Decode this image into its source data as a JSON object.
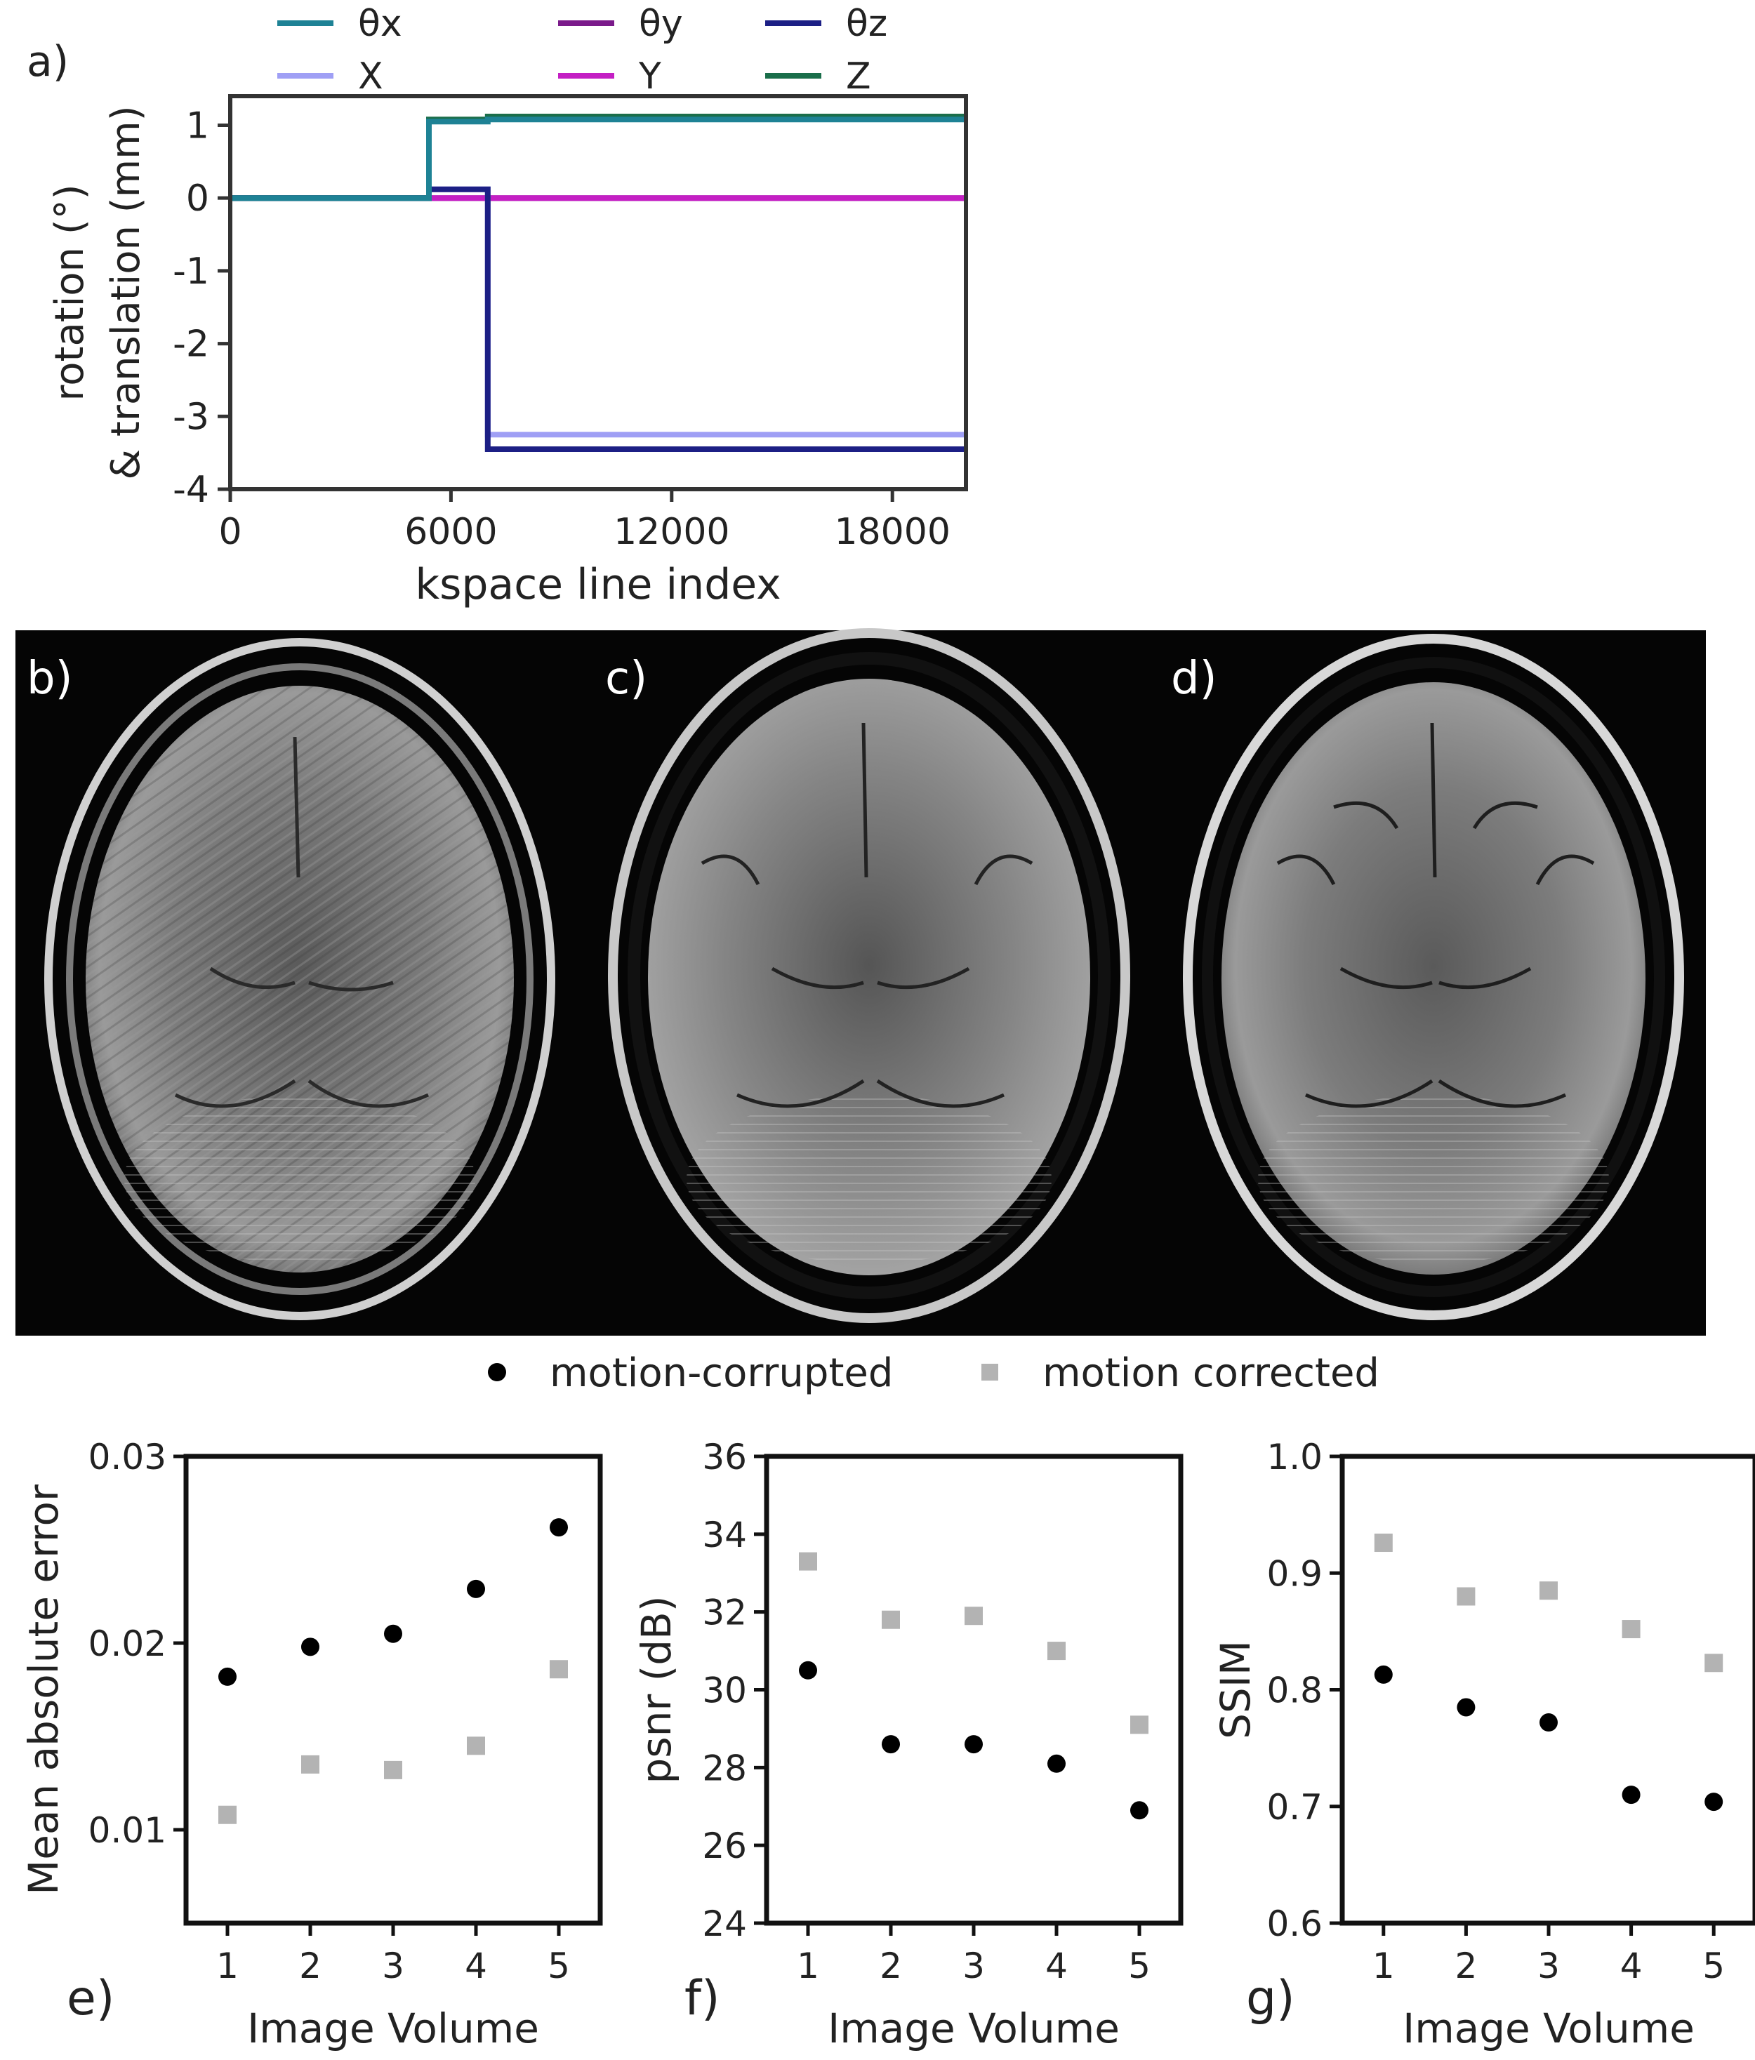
{
  "panel_labels": {
    "a": "a)",
    "b": "b)",
    "c": "c)",
    "d": "d)",
    "e": "e)",
    "f": "f)",
    "g": "g)"
  },
  "colors": {
    "thetax": "#1e8295",
    "thetay": "#7a1a8a",
    "thetaz": "#1c1f85",
    "X": "#9f9ff5",
    "Y": "#c41fc4",
    "Z": "#1a6e4a",
    "corrupted": "#000000",
    "corrected": "#b3b3b3"
  },
  "legend_top": [
    {
      "key": "thetax",
      "label": "θx"
    },
    {
      "key": "thetay",
      "label": "θy"
    },
    {
      "key": "thetaz",
      "label": "θz"
    },
    {
      "key": "X",
      "label": "X"
    },
    {
      "key": "Y",
      "label": "Y"
    },
    {
      "key": "Z",
      "label": "Z"
    }
  ],
  "legend_bottom": [
    {
      "key": "corrupted",
      "label": "motion-corrupted",
      "marker": "circle"
    },
    {
      "key": "corrected",
      "label": "motion corrected",
      "marker": "square"
    }
  ],
  "brain_images": [
    {
      "label": "b)",
      "description": "motion-corrupted axial brain MRI"
    },
    {
      "label": "c)",
      "description": "reference axial brain MRI"
    },
    {
      "label": "d)",
      "description": "motion-corrected axial brain MRI"
    }
  ],
  "chart_data": [
    {
      "id": "motion_trace",
      "type": "line",
      "title": "",
      "xlabel": "kspace line index",
      "ylabel_line1": "rotation (°)",
      "ylabel_line2": "& translation (mm)",
      "xlim": [
        0,
        20000
      ],
      "ylim": [
        -4,
        1.4
      ],
      "xticks": [
        0,
        6000,
        12000,
        18000
      ],
      "xtick_labels": [
        "0",
        "6000",
        "12000",
        "18000"
      ],
      "yticks": [
        1,
        0,
        -1,
        -2,
        -3,
        -4
      ],
      "ytick_labels": [
        "1",
        "0",
        "-1",
        "-2",
        "-3",
        "-4"
      ],
      "series": [
        {
          "name": "θy",
          "key": "thetay",
          "x": [
            0,
            5400,
            5400,
            20000
          ],
          "y": [
            0,
            0,
            0,
            0
          ]
        },
        {
          "name": "Y",
          "key": "Y",
          "x": [
            0,
            5400,
            5400,
            20000
          ],
          "y": [
            0,
            0,
            0,
            0
          ]
        },
        {
          "name": "X",
          "key": "X",
          "x": [
            0,
            5400,
            5400,
            7000,
            7000,
            20000
          ],
          "y": [
            0,
            0,
            0.12,
            0.12,
            -3.25,
            -3.25
          ]
        },
        {
          "name": "θz",
          "key": "thetaz",
          "x": [
            0,
            5400,
            5400,
            7000,
            7000,
            20000
          ],
          "y": [
            0,
            0,
            0.12,
            0.12,
            -3.45,
            -3.45
          ]
        },
        {
          "name": "Z",
          "key": "Z",
          "x": [
            0,
            5400,
            5400,
            7000,
            7000,
            20000
          ],
          "y": [
            0,
            0,
            1.08,
            1.08,
            1.12,
            1.12
          ]
        },
        {
          "name": "θx",
          "key": "thetax",
          "x": [
            0,
            5400,
            5400,
            7000,
            7000,
            20000
          ],
          "y": [
            0,
            0,
            1.05,
            1.05,
            1.08,
            1.08
          ]
        }
      ]
    },
    {
      "id": "mae",
      "type": "scatter",
      "panel": "e)",
      "xlabel": "Image Volume",
      "ylabel": "Mean absolute error",
      "xlim": [
        0.5,
        5.5
      ],
      "ylim": [
        0.005,
        0.03
      ],
      "xticks": [
        1,
        2,
        3,
        4,
        5
      ],
      "yticks": [
        0.03,
        0.02,
        0.01
      ],
      "ytick_labels": [
        "0.03",
        "0.02",
        "0.01"
      ],
      "x": [
        1,
        2,
        3,
        4,
        5
      ],
      "series": [
        {
          "name": "motion-corrupted",
          "key": "corrupted",
          "marker": "circle",
          "values": [
            0.0182,
            0.0198,
            0.0205,
            0.0229,
            0.0262
          ]
        },
        {
          "name": "motion corrected",
          "key": "corrected",
          "marker": "square",
          "values": [
            0.0108,
            0.0135,
            0.0132,
            0.0145,
            0.0186
          ]
        }
      ]
    },
    {
      "id": "psnr",
      "type": "scatter",
      "panel": "f)",
      "xlabel": "Image Volume",
      "ylabel": "psnr (dB)",
      "xlim": [
        0.5,
        5.5
      ],
      "ylim": [
        24,
        36
      ],
      "xticks": [
        1,
        2,
        3,
        4,
        5
      ],
      "yticks": [
        36,
        34,
        32,
        30,
        28,
        26,
        24
      ],
      "ytick_labels": [
        "36",
        "34",
        "32",
        "30",
        "28",
        "26",
        "24"
      ],
      "x": [
        1,
        2,
        3,
        4,
        5
      ],
      "series": [
        {
          "name": "motion-corrupted",
          "key": "corrupted",
          "marker": "circle",
          "values": [
            30.5,
            28.6,
            28.6,
            28.1,
            26.9
          ]
        },
        {
          "name": "motion corrected",
          "key": "corrected",
          "marker": "square",
          "values": [
            33.3,
            31.8,
            31.9,
            31.0,
            29.1
          ]
        }
      ]
    },
    {
      "id": "ssim",
      "type": "scatter",
      "panel": "g)",
      "xlabel": "Image Volume",
      "ylabel": "SSIM",
      "xlim": [
        0.5,
        5.5
      ],
      "ylim": [
        0.6,
        1.0
      ],
      "xticks": [
        1,
        2,
        3,
        4,
        5
      ],
      "yticks": [
        1.0,
        0.9,
        0.8,
        0.7,
        0.6
      ],
      "ytick_labels": [
        "1.0",
        "0.9",
        "0.8",
        "0.7",
        "0.6"
      ],
      "x": [
        1,
        2,
        3,
        4,
        5
      ],
      "series": [
        {
          "name": "motion-corrupted",
          "key": "corrupted",
          "marker": "circle",
          "values": [
            0.813,
            0.785,
            0.772,
            0.71,
            0.704
          ]
        },
        {
          "name": "motion corrected",
          "key": "corrected",
          "marker": "square",
          "values": [
            0.926,
            0.88,
            0.885,
            0.852,
            0.823
          ]
        }
      ]
    }
  ]
}
